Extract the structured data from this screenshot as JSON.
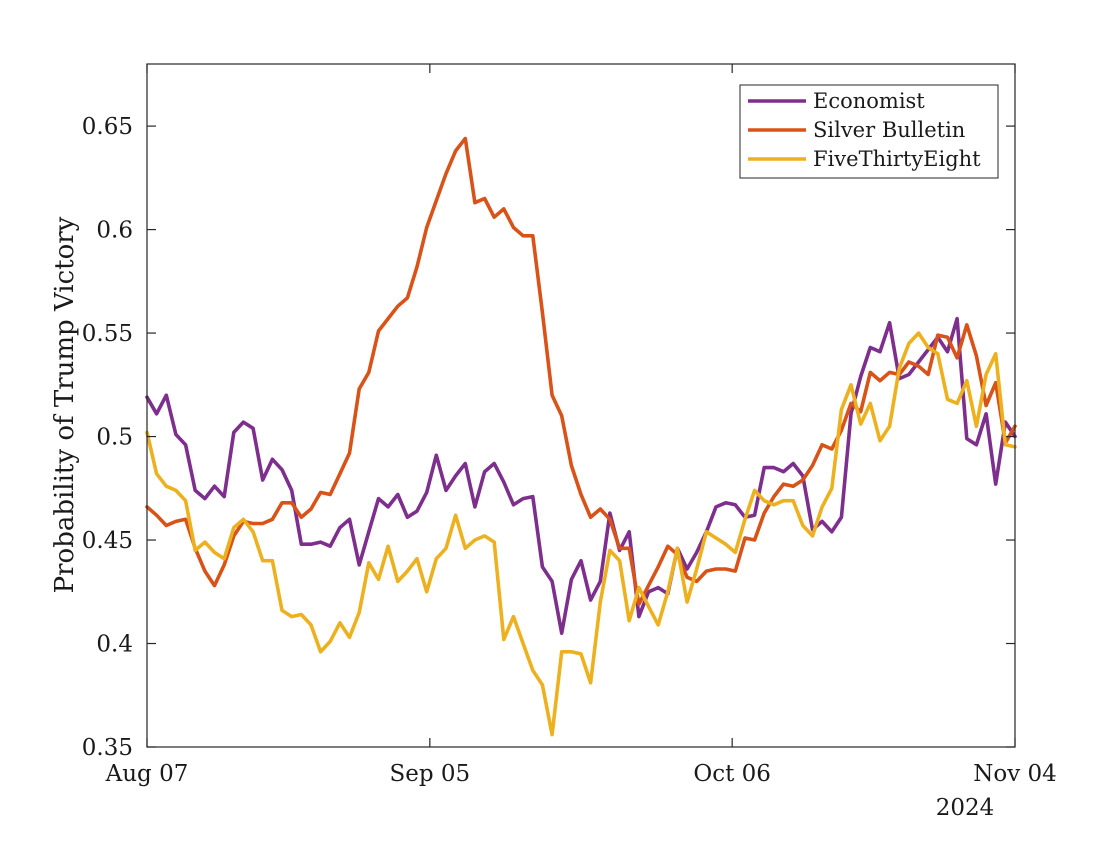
{
  "chart_data": {
    "type": "line",
    "title": "",
    "xlabel": "",
    "ylabel": "Probability of Trump Victory",
    "x_start": "2024-08-07",
    "x_end": "2024-11-04",
    "x_ticks": [
      {
        "date": "2024-08-07",
        "label": "Aug 07"
      },
      {
        "date": "2024-09-05",
        "label": "Sep 05"
      },
      {
        "date": "2024-10-06",
        "label": "Oct 06"
      },
      {
        "date": "2024-11-04",
        "label": "Nov 04"
      }
    ],
    "x_year_label": "2024",
    "ylim": [
      0.35,
      0.68
    ],
    "y_ticks": [
      0.35,
      0.4,
      0.45,
      0.5,
      0.55,
      0.6,
      0.65
    ],
    "y_tick_labels": [
      "0.35",
      "0.4",
      "0.45",
      "0.5",
      "0.55",
      "0.6",
      "0.65"
    ],
    "grid": false,
    "legend_position": "top-right",
    "series": [
      {
        "name": "Economist",
        "color": "#7E2F8E",
        "values": [
          0.519,
          0.511,
          0.52,
          0.501,
          0.496,
          0.474,
          0.47,
          0.476,
          0.471,
          0.502,
          0.507,
          0.504,
          0.479,
          0.489,
          0.484,
          0.474,
          0.448,
          0.448,
          0.449,
          0.447,
          0.456,
          0.46,
          0.438,
          0.454,
          0.47,
          0.466,
          0.472,
          0.461,
          0.464,
          0.473,
          0.491,
          0.474,
          0.481,
          0.487,
          0.466,
          0.483,
          0.487,
          0.478,
          0.467,
          0.47,
          0.471,
          0.437,
          0.43,
          0.405,
          0.431,
          0.44,
          0.421,
          0.43,
          0.463,
          0.445,
          0.454,
          0.413,
          0.425,
          0.427,
          0.424,
          0.446,
          0.436,
          0.444,
          0.454,
          0.466,
          0.468,
          0.467,
          0.461,
          0.462,
          0.485,
          0.485,
          0.483,
          0.487,
          0.481,
          0.455,
          0.459,
          0.454,
          0.461,
          0.511,
          0.529,
          0.543,
          0.541,
          0.555,
          0.528,
          0.53,
          0.536,
          0.542,
          0.548,
          0.541,
          0.557,
          0.499,
          0.496,
          0.511,
          0.477,
          0.507,
          0.5
        ]
      },
      {
        "name": "Silver Bulletin",
        "color": "#D95319",
        "values": [
          0.466,
          0.462,
          0.457,
          0.459,
          0.46,
          0.446,
          0.435,
          0.428,
          0.438,
          0.452,
          0.459,
          0.458,
          0.458,
          0.46,
          0.468,
          0.468,
          0.461,
          0.465,
          0.473,
          0.472,
          0.482,
          0.492,
          0.523,
          0.531,
          0.551,
          0.557,
          0.563,
          0.567,
          0.582,
          0.601,
          0.614,
          0.627,
          0.638,
          0.644,
          0.613,
          0.615,
          0.606,
          0.61,
          0.601,
          0.597,
          0.597,
          0.56,
          0.52,
          0.51,
          0.486,
          0.472,
          0.461,
          0.465,
          0.46,
          0.446,
          0.446,
          0.419,
          0.428,
          0.437,
          0.447,
          0.443,
          0.432,
          0.43,
          0.435,
          0.436,
          0.436,
          0.435,
          0.451,
          0.45,
          0.463,
          0.471,
          0.477,
          0.476,
          0.479,
          0.486,
          0.496,
          0.494,
          0.503,
          0.516,
          0.512,
          0.531,
          0.527,
          0.531,
          0.53,
          0.536,
          0.534,
          0.53,
          0.549,
          0.548,
          0.538,
          0.554,
          0.539,
          0.515,
          0.526,
          0.497,
          0.505
        ]
      },
      {
        "name": "FiveThirtyEight",
        "color": "#EDB120",
        "values": [
          0.502,
          0.482,
          0.476,
          0.474,
          0.469,
          0.445,
          0.449,
          0.444,
          0.441,
          0.456,
          0.46,
          0.454,
          0.44,
          0.44,
          0.416,
          0.413,
          0.414,
          0.409,
          0.396,
          0.401,
          0.41,
          0.403,
          0.415,
          0.439,
          0.431,
          0.447,
          0.43,
          0.435,
          0.441,
          0.425,
          0.441,
          0.446,
          0.462,
          0.446,
          0.45,
          0.452,
          0.449,
          0.402,
          0.413,
          0.4,
          0.387,
          0.38,
          0.356,
          0.396,
          0.396,
          0.395,
          0.381,
          0.42,
          0.445,
          0.44,
          0.411,
          0.427,
          0.418,
          0.409,
          0.425,
          0.446,
          0.42,
          0.436,
          0.454,
          0.451,
          0.448,
          0.444,
          0.46,
          0.474,
          0.469,
          0.467,
          0.469,
          0.469,
          0.457,
          0.452,
          0.466,
          0.475,
          0.513,
          0.525,
          0.506,
          0.516,
          0.498,
          0.505,
          0.533,
          0.545,
          0.55,
          0.543,
          0.54,
          0.518,
          0.516,
          0.527,
          0.505,
          0.53,
          0.54,
          0.496,
          0.495
        ]
      }
    ]
  }
}
